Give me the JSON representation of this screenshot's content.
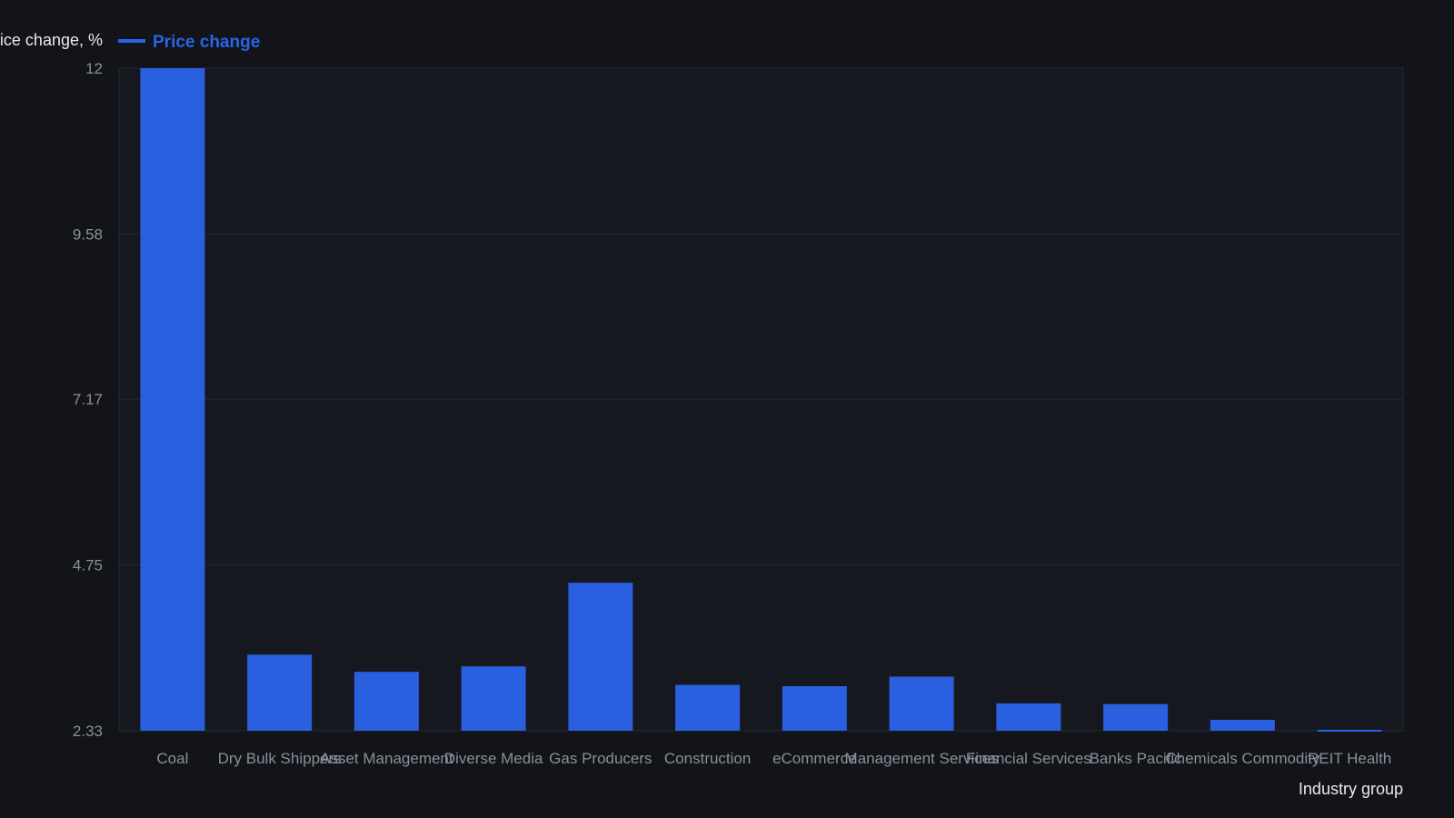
{
  "chart_data": {
    "type": "bar",
    "ylabel": "Price change, %",
    "xlabel": "Industry group",
    "legend": {
      "position": "top-left",
      "entries": [
        "Price change"
      ]
    },
    "y_ticks": [
      "12",
      "9.58",
      "7.17",
      "4.75",
      "2.33"
    ],
    "ylim": [
      2.33,
      12
    ],
    "grid": true,
    "categories": [
      "Coal",
      "Dry Bulk Shippers",
      "Asset Management",
      "Diverse Media",
      "Gas Producers",
      "Construction",
      "eCommerce",
      "Management Services",
      "Financial Services",
      "Banks Pacific",
      "Chemicals Commodity",
      "REIT Health"
    ],
    "series": [
      {
        "name": "Price change",
        "values": [
          12.0,
          3.44,
          3.19,
          3.27,
          4.49,
          3.0,
          2.98,
          3.12,
          2.73,
          2.72,
          2.49,
          2.31
        ]
      }
    ],
    "colors": {
      "bar": "#2a5fe0",
      "background": "#121419",
      "plot_background": "#15181e",
      "grid": "#262a31"
    }
  }
}
